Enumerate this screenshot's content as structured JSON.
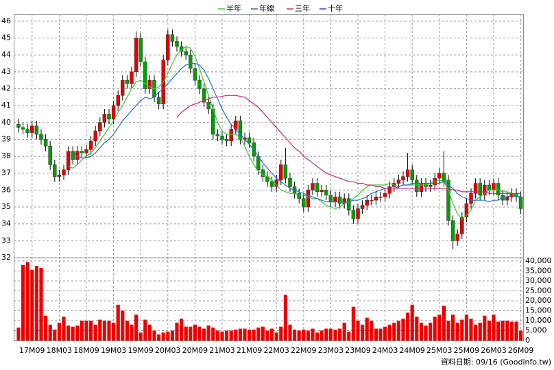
{
  "chart_data": {
    "type": "candlestick",
    "footer": "資料日期: 09/16 (Goodinfo.tw)",
    "categories": [
      null,
      null,
      null,
      "17M09",
      null,
      null,
      null,
      null,
      null,
      "18M03",
      null,
      null,
      null,
      null,
      null,
      "18M09",
      null,
      null,
      null,
      null,
      null,
      "19M03",
      null,
      null,
      null,
      null,
      null,
      "19M09",
      null,
      null,
      null,
      null,
      null,
      "20M03",
      null,
      null,
      null,
      null,
      null,
      "20M09",
      null,
      null,
      null,
      null,
      null,
      "21M03",
      null,
      null,
      null,
      null,
      null,
      "21M09",
      null,
      null,
      null,
      null,
      null,
      "22M03",
      null,
      null,
      null,
      null,
      null,
      "22M09",
      null,
      null,
      null,
      null,
      null,
      "23M03",
      null,
      null,
      null,
      null,
      null,
      "23M09",
      null,
      null,
      null,
      null,
      null,
      "24M03",
      null,
      null,
      null,
      null,
      null,
      "24M09",
      null,
      null,
      null,
      null,
      null,
      "25M03",
      null,
      null,
      null,
      null,
      null,
      "25M09",
      null,
      null,
      null,
      null,
      null,
      "26M03",
      null,
      null,
      null,
      null,
      null,
      "26M09"
    ],
    "open": [
      39.9,
      39.7,
      39.6,
      39.4,
      39.8,
      39.3,
      39.0,
      38.6,
      37.5,
      36.8,
      36.9,
      37.2,
      38.3,
      37.8,
      38.3,
      38.2,
      38.4,
      38.9,
      39.5,
      40.0,
      40.5,
      40.2,
      41.0,
      41.6,
      42.5,
      42.3,
      43.0,
      45.0,
      43.6,
      42.0,
      42.5,
      41.5,
      41.1,
      43.7,
      45.2,
      44.8,
      44.5,
      44.2,
      44.0,
      43.2,
      42.5,
      42.0,
      41.2,
      40.8,
      39.3,
      39.2,
      39.0,
      38.9,
      39.6,
      40.1,
      39.0,
      39.1,
      38.8,
      38.0,
      37.2,
      36.8,
      36.5,
      36.2,
      36.6,
      37.5,
      36.7,
      36.2,
      35.8,
      35.5,
      35.0,
      36.0,
      36.4,
      35.9,
      36.0,
      35.7,
      35.3,
      35.6,
      35.2,
      35.5,
      34.8,
      34.3,
      34.9,
      35.1,
      35.4,
      35.4,
      35.6,
      35.6,
      35.8,
      36.2,
      36.4,
      36.6,
      36.8,
      37.2,
      36.6,
      35.9,
      36.4,
      36.2,
      36.3,
      36.7,
      37.0,
      36.6,
      34.2,
      33.0,
      33.4,
      34.4,
      35.2,
      35.8,
      36.4,
      35.7,
      36.3,
      36.0,
      36.4,
      35.7,
      35.4,
      35.6,
      35.8,
      35.6
    ],
    "high": [
      40.2,
      40.0,
      39.9,
      40.1,
      40.1,
      39.6,
      39.3,
      38.9,
      37.8,
      37.2,
      37.5,
      38.6,
      38.6,
      38.6,
      38.6,
      38.7,
      39.2,
      39.8,
      40.3,
      40.8,
      40.8,
      41.3,
      41.9,
      42.8,
      42.8,
      43.3,
      45.4,
      45.3,
      43.9,
      42.8,
      42.8,
      41.8,
      44.0,
      45.5,
      45.5,
      45.1,
      44.8,
      44.5,
      44.3,
      43.5,
      42.8,
      42.3,
      41.5,
      41.1,
      39.6,
      39.5,
      39.3,
      39.9,
      40.4,
      40.4,
      39.4,
      39.4,
      39.1,
      38.3,
      37.5,
      37.1,
      36.8,
      36.9,
      37.8,
      38.5,
      37.0,
      36.5,
      36.1,
      35.8,
      36.3,
      36.7,
      36.7,
      36.3,
      36.3,
      36.0,
      35.9,
      35.9,
      35.8,
      35.8,
      35.1,
      35.2,
      35.4,
      35.7,
      35.7,
      35.9,
      35.9,
      36.1,
      36.5,
      36.7,
      36.9,
      37.1,
      38.2,
      37.5,
      36.9,
      36.7,
      36.7,
      36.6,
      37.0,
      37.3,
      38.3,
      36.9,
      34.5,
      33.7,
      34.7,
      35.5,
      36.1,
      36.7,
      36.7,
      36.6,
      36.6,
      36.7,
      36.7,
      36.0,
      35.9,
      36.1,
      36.1,
      35.9
    ],
    "low": [
      39.4,
      39.3,
      39.1,
      39.1,
      39.0,
      38.7,
      38.3,
      37.2,
      36.5,
      36.5,
      36.6,
      36.9,
      37.5,
      37.5,
      37.9,
      37.9,
      38.1,
      38.6,
      39.2,
      39.7,
      39.9,
      39.9,
      40.7,
      41.3,
      42.0,
      42.0,
      42.7,
      43.3,
      41.7,
      41.7,
      41.2,
      40.8,
      40.8,
      43.4,
      44.5,
      44.2,
      43.9,
      43.7,
      42.9,
      42.2,
      41.7,
      40.9,
      40.5,
      39.0,
      38.9,
      38.7,
      38.6,
      38.6,
      39.3,
      38.7,
      38.7,
      38.5,
      37.7,
      36.9,
      36.5,
      36.2,
      35.9,
      35.9,
      36.3,
      36.4,
      35.9,
      35.5,
      35.2,
      34.7,
      34.7,
      35.7,
      35.6,
      35.6,
      35.4,
      35.0,
      35.0,
      34.9,
      34.9,
      34.5,
      34.0,
      34.0,
      34.6,
      34.8,
      35.1,
      35.1,
      35.3,
      35.3,
      35.5,
      35.9,
      36.1,
      36.3,
      36.5,
      36.3,
      35.6,
      35.6,
      35.9,
      35.9,
      36.0,
      36.4,
      36.2,
      33.9,
      32.5,
      32.7,
      33.1,
      34.1,
      34.9,
      35.5,
      35.4,
      35.4,
      35.7,
      35.7,
      35.4,
      35.1,
      35.1,
      35.3,
      35.3,
      34.6
    ],
    "close": [
      39.7,
      39.6,
      39.4,
      39.8,
      39.3,
      39.0,
      38.6,
      37.5,
      36.8,
      36.9,
      37.2,
      38.3,
      37.8,
      38.3,
      38.2,
      38.4,
      38.9,
      39.5,
      40.0,
      40.5,
      40.2,
      41.0,
      41.6,
      42.5,
      42.3,
      43.0,
      45.0,
      43.6,
      42.0,
      42.5,
      41.5,
      41.1,
      43.7,
      45.2,
      44.8,
      44.5,
      44.2,
      44.0,
      43.2,
      42.5,
      42.0,
      41.2,
      40.8,
      39.3,
      39.2,
      39.0,
      38.9,
      39.6,
      40.1,
      39.0,
      39.1,
      38.8,
      38.0,
      37.2,
      36.8,
      36.5,
      36.2,
      36.6,
      37.5,
      36.7,
      36.2,
      35.8,
      35.5,
      35.0,
      36.0,
      36.4,
      35.9,
      36.0,
      35.7,
      35.3,
      35.6,
      35.2,
      35.5,
      34.8,
      34.3,
      34.9,
      35.1,
      35.4,
      35.4,
      35.6,
      35.6,
      35.8,
      36.2,
      36.4,
      36.6,
      36.8,
      37.2,
      36.6,
      35.9,
      36.4,
      36.2,
      36.3,
      36.7,
      37.0,
      36.5,
      34.2,
      33.0,
      33.4,
      34.4,
      35.2,
      35.8,
      36.4,
      35.7,
      36.3,
      36.0,
      36.4,
      35.7,
      35.4,
      35.6,
      35.8,
      35.6,
      34.9
    ],
    "volume": [
      6500,
      38000,
      39500,
      35500,
      37500,
      36500,
      12500,
      8000,
      5500,
      9000,
      12000,
      7500,
      7000,
      7500,
      10000,
      10000,
      10000,
      8000,
      10500,
      10000,
      10000,
      9000,
      18000,
      15000,
      10000,
      8000,
      13000,
      4000,
      10500,
      8000,
      5000,
      3000,
      4000,
      4500,
      5000,
      9000,
      11000,
      7000,
      7000,
      8000,
      7000,
      6000,
      7500,
      6500,
      5000,
      4500,
      5000,
      5000,
      5500,
      6000,
      6000,
      5500,
      5500,
      6500,
      7000,
      5000,
      6000,
      4000,
      7000,
      23000,
      8000,
      5500,
      5000,
      5500,
      5000,
      6000,
      4000,
      5000,
      6000,
      6000,
      5500,
      6000,
      9000,
      4500,
      17000,
      10000,
      8000,
      11500,
      10000,
      6000,
      6000,
      7000,
      8000,
      9000,
      10000,
      11000,
      14000,
      18000,
      12000,
      9000,
      7500,
      9000,
      12000,
      13000,
      17500,
      10000,
      13000,
      9000,
      10500,
      13000,
      11000,
      8000,
      9000,
      12500,
      10000,
      13000,
      9500,
      10000,
      10000,
      9500,
      9500,
      5000
    ],
    "up_color": "#e60000",
    "down_color": "#00a000",
    "volume_color": "#ee0000",
    "series": [
      {
        "name": "半年",
        "color": "#33cc33",
        "values": [
          null,
          null,
          null,
          null,
          null,
          null,
          null,
          null,
          null,
          null,
          null,
          37.4,
          37.3,
          37.5,
          37.8,
          38.0,
          38.2,
          38.5,
          38.9,
          39.3,
          39.7,
          40.1,
          40.6,
          41.0,
          41.5,
          42.0,
          42.4,
          42.5,
          42.3,
          42.1,
          42.0,
          42.1,
          42.4,
          42.9,
          43.5,
          44.0,
          44.3,
          44.5,
          44.4,
          43.9,
          43.2,
          42.4,
          41.6,
          40.8,
          40.0,
          39.5,
          39.3,
          39.3,
          39.3,
          39.1,
          38.6,
          38.0,
          37.5,
          37.1,
          36.9,
          36.8,
          36.6,
          36.3,
          36.0,
          35.9,
          35.8,
          35.8,
          35.7,
          35.7,
          35.6,
          35.5,
          35.5,
          35.3,
          35.1,
          35.0,
          34.9,
          35.0,
          35.2,
          35.3,
          35.5,
          35.7,
          36.0,
          36.2,
          36.3,
          36.3,
          36.3,
          36.3,
          36.4,
          36.3,
          36.2,
          36.3,
          36.3,
          36.3,
          36.3,
          36.3,
          36.3,
          36.4,
          36.5,
          36.6,
          36.5,
          36.0,
          35.2,
          34.6,
          34.3,
          34.5,
          34.8,
          35.4,
          35.6,
          35.8,
          36.0,
          36.0,
          36.0,
          35.9,
          35.9,
          35.8,
          35.7,
          35.6
        ]
      },
      {
        "name": "年線",
        "color": "#1e6fd9",
        "values": [
          null,
          null,
          null,
          null,
          null,
          null,
          null,
          null,
          null,
          null,
          null,
          null,
          38.2,
          38.0,
          37.9,
          37.9,
          38.0,
          38.2,
          38.5,
          38.8,
          39.0,
          39.3,
          39.7,
          40.1,
          40.4,
          40.7,
          41.0,
          41.3,
          41.5,
          41.4,
          41.5,
          41.8,
          42.0,
          42.3,
          42.6,
          42.9,
          43.2,
          43.4,
          43.5,
          43.5,
          43.4,
          43.1,
          42.6,
          42.0,
          41.4,
          40.8,
          40.3,
          39.9,
          39.6,
          39.3,
          39.0,
          38.7,
          38.4,
          38.0,
          37.6,
          37.3,
          37.0,
          36.7,
          36.5,
          36.3,
          36.1,
          36.0,
          35.9,
          35.8,
          35.7,
          35.6,
          35.5,
          35.4,
          35.3,
          35.3,
          35.3,
          35.3,
          35.3,
          35.3,
          35.4,
          35.4,
          35.5,
          35.6,
          35.8,
          35.9,
          36.0,
          36.1,
          36.1,
          36.1,
          36.2,
          36.3,
          36.3,
          36.4,
          36.4,
          36.4,
          36.4,
          36.4,
          36.4,
          36.4,
          36.5,
          36.3,
          36.1,
          35.8,
          35.6,
          35.5,
          35.4,
          35.4,
          35.4,
          35.4,
          35.3,
          35.4,
          35.4,
          35.6,
          35.6,
          35.7,
          35.6,
          35.6
        ]
      },
      {
        "name": "三年",
        "color": "#d6246e",
        "values": [
          null,
          null,
          null,
          null,
          null,
          null,
          null,
          null,
          null,
          null,
          null,
          null,
          null,
          null,
          null,
          null,
          null,
          null,
          null,
          null,
          null,
          null,
          null,
          null,
          null,
          null,
          null,
          null,
          null,
          null,
          null,
          null,
          null,
          null,
          null,
          40.3,
          40.6,
          40.8,
          41.0,
          41.1,
          41.2,
          41.3,
          41.4,
          41.5,
          41.5,
          41.55,
          41.6,
          41.6,
          41.6,
          41.55,
          41.5,
          41.3,
          41.1,
          40.9,
          40.6,
          40.3,
          40.0,
          39.7,
          39.4,
          39.1,
          38.8,
          38.5,
          38.3,
          38.0,
          37.8,
          37.6,
          37.4,
          37.2,
          37.0,
          36.9,
          36.8,
          36.7,
          36.6,
          36.5,
          36.5,
          36.4,
          36.4,
          36.3,
          36.3,
          36.2,
          36.2,
          36.1,
          36.1,
          36.1,
          36.1,
          36.1,
          36.1,
          36.1,
          36.1,
          36.1,
          36.1,
          36.1,
          36.1,
          36.1,
          36.1,
          36.1,
          36.0,
          36.0,
          35.9,
          35.9,
          35.9,
          35.9,
          35.9,
          35.9,
          35.8,
          35.8,
          35.8,
          35.8,
          35.8,
          35.8,
          35.8,
          35.8
        ]
      },
      {
        "name": "十年",
        "color": "#7a1fa2",
        "values": [
          null,
          null,
          null,
          null,
          null,
          null,
          null,
          null,
          null,
          null,
          null,
          null,
          null,
          null,
          null,
          null,
          null,
          null,
          null,
          null,
          null,
          null,
          null,
          null,
          null,
          null,
          null,
          null,
          null,
          null,
          null,
          null,
          null,
          null,
          null,
          null,
          null,
          null,
          null,
          null,
          null,
          null,
          null,
          null,
          null,
          null,
          null,
          null,
          null,
          null,
          null,
          null,
          null,
          null,
          null,
          null,
          null,
          null,
          null,
          null,
          null,
          null,
          null,
          null,
          null,
          null,
          null,
          null,
          null,
          null,
          null,
          null,
          null,
          null,
          null,
          null,
          null,
          null,
          null,
          null,
          null,
          null,
          null,
          null,
          null,
          null,
          null,
          null,
          null,
          null,
          null,
          null,
          null,
          null,
          null,
          null,
          null,
          null,
          null,
          null,
          null,
          null,
          null,
          null,
          null,
          null,
          null,
          null,
          null,
          null,
          null,
          null
        ]
      }
    ],
    "ylim": [
      32,
      46.4
    ],
    "yticks": [
      32,
      33,
      34,
      35,
      36,
      37,
      38,
      39,
      40,
      41,
      42,
      43,
      44,
      45,
      46
    ],
    "volume_ylim": [
      0,
      41700
    ],
    "volume_ticks": [
      0,
      {
        "value": 5000,
        "label": "5,000"
      },
      {
        "value": 10000,
        "label": "10,000"
      },
      {
        "value": 15000,
        "label": "15,000"
      },
      {
        "value": 20000,
        "label": "20,000"
      },
      {
        "value": 25000,
        "label": "25,000"
      },
      {
        "value": 30000,
        "label": "30,000"
      },
      {
        "value": 35000,
        "label": "35,000"
      },
      {
        "value": 40000,
        "label": "40,000"
      }
    ],
    "grid": true
  }
}
